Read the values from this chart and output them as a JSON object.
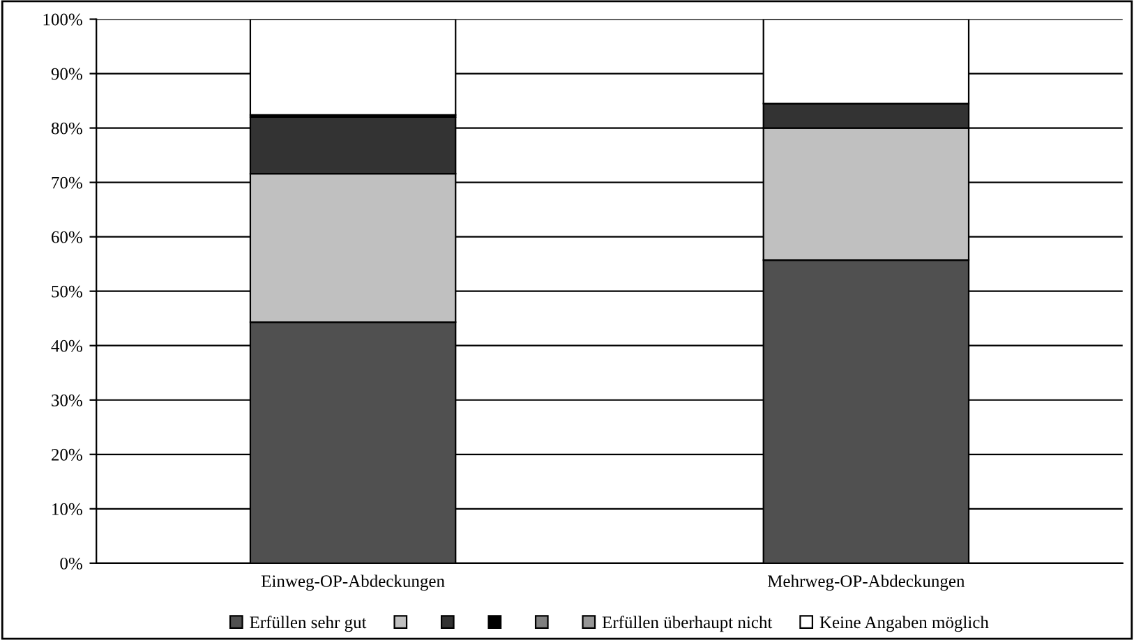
{
  "chart_data": {
    "type": "bar",
    "stacked": true,
    "categories": [
      "Einweg-OP-Abdeckungen",
      "Mehrweg-OP-Abdeckungen"
    ],
    "series": [
      {
        "name": "Erfüllen sehr gut",
        "color": "#505050",
        "values": [
          44.3,
          55.7
        ]
      },
      {
        "name": null,
        "color": "#c0c0c0",
        "values": [
          27.3,
          24.3
        ]
      },
      {
        "name": null,
        "color": "#333333",
        "values": [
          10.4,
          4.5
        ]
      },
      {
        "name": null,
        "color": "#000000",
        "values": [
          0.4,
          0
        ]
      },
      {
        "name": null,
        "color": "#808080",
        "values": [
          0,
          0
        ]
      },
      {
        "name": "Erfüllen überhaupt nicht",
        "color": "#969696",
        "values": [
          0,
          0
        ]
      },
      {
        "name": "Keine Angaben möglich",
        "color": "#ffffff",
        "values": [
          17.6,
          15.5
        ]
      }
    ],
    "ylim": [
      0,
      100
    ],
    "yticks": [
      {
        "value": 0,
        "label": "0%"
      },
      {
        "value": 10,
        "label": "10%"
      },
      {
        "value": 20,
        "label": "20%"
      },
      {
        "value": 30,
        "label": "30%"
      },
      {
        "value": 40,
        "label": "40%"
      },
      {
        "value": 50,
        "label": "50%"
      },
      {
        "value": 60,
        "label": "60%"
      },
      {
        "value": 70,
        "label": "70%"
      },
      {
        "value": 80,
        "label": "80%"
      },
      {
        "value": 90,
        "label": "90%"
      },
      {
        "value": 100,
        "label": "100%"
      }
    ],
    "grid": "y",
    "legend": "bottom"
  }
}
